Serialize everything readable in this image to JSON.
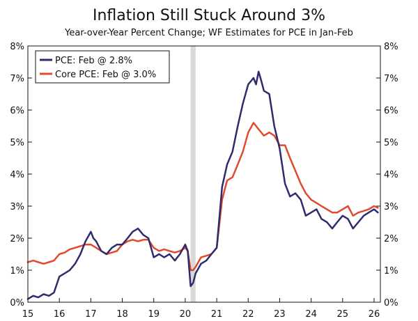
{
  "chart_data": {
    "type": "line",
    "title": "Inflation Still Stuck Around 3%",
    "subtitle": "Year-over-Year Percent Change; WF Estimates for PCE in Jan-Feb",
    "xlabel": "",
    "ylabel": "",
    "xlim": [
      15,
      26.2
    ],
    "ylim": [
      0,
      8
    ],
    "x_ticks": [
      15,
      16,
      17,
      18,
      19,
      20,
      21,
      22,
      23,
      24,
      25,
      26
    ],
    "x_tick_labels": [
      "15",
      "16",
      "17",
      "18",
      "19",
      "20",
      "21",
      "22",
      "23",
      "24",
      "25",
      "26"
    ],
    "y_ticks": [
      0,
      1,
      2,
      3,
      4,
      5,
      6,
      7,
      8
    ],
    "y_tick_labels": [
      "0%",
      "1%",
      "2%",
      "3%",
      "4%",
      "5%",
      "6%",
      "7%",
      "8%"
    ],
    "recession_band": [
      20.17,
      20.33
    ],
    "legend": {
      "placement": "top-left"
    },
    "series": [
      {
        "name": "PCE: Feb @ 2.8%",
        "color": "#2e2b6e",
        "x": [
          15.0,
          15.17,
          15.33,
          15.5,
          15.67,
          15.83,
          16.0,
          16.17,
          16.33,
          16.5,
          16.67,
          16.83,
          17.0,
          17.08,
          17.17,
          17.33,
          17.5,
          17.67,
          17.83,
          18.0,
          18.17,
          18.33,
          18.5,
          18.67,
          18.83,
          19.0,
          19.17,
          19.33,
          19.5,
          19.67,
          19.83,
          20.0,
          20.08,
          20.17,
          20.25,
          20.33,
          20.5,
          20.67,
          20.83,
          21.0,
          21.17,
          21.33,
          21.5,
          21.67,
          21.83,
          22.0,
          22.17,
          22.25,
          22.33,
          22.42,
          22.5,
          22.67,
          22.83,
          23.0,
          23.17,
          23.33,
          23.5,
          23.67,
          23.83,
          24.0,
          24.17,
          24.33,
          24.5,
          24.67,
          24.83,
          25.0,
          25.17,
          25.33,
          25.5,
          25.67,
          25.83,
          26.0,
          26.12
        ],
        "y": [
          0.1,
          0.2,
          0.15,
          0.25,
          0.2,
          0.3,
          0.8,
          0.9,
          1.0,
          1.2,
          1.5,
          1.9,
          2.2,
          2.0,
          1.9,
          1.6,
          1.5,
          1.7,
          1.8,
          1.8,
          2.0,
          2.2,
          2.3,
          2.1,
          2.0,
          1.4,
          1.5,
          1.4,
          1.5,
          1.3,
          1.5,
          1.8,
          1.6,
          0.5,
          0.6,
          0.9,
          1.2,
          1.3,
          1.5,
          1.7,
          3.6,
          4.3,
          4.7,
          5.5,
          6.2,
          6.8,
          7.0,
          6.8,
          7.2,
          6.9,
          6.6,
          6.5,
          5.5,
          4.8,
          3.7,
          3.3,
          3.4,
          3.2,
          2.7,
          2.8,
          2.9,
          2.6,
          2.5,
          2.3,
          2.5,
          2.7,
          2.6,
          2.3,
          2.5,
          2.7,
          2.8,
          2.9,
          2.8
        ]
      },
      {
        "name": "Core PCE: Feb @ 3.0%",
        "color": "#e04b2d",
        "x": [
          15.0,
          15.17,
          15.33,
          15.5,
          15.67,
          15.83,
          16.0,
          16.17,
          16.33,
          16.5,
          16.67,
          16.83,
          17.0,
          17.17,
          17.33,
          17.5,
          17.67,
          17.83,
          18.0,
          18.17,
          18.33,
          18.5,
          18.67,
          18.83,
          19.0,
          19.17,
          19.33,
          19.5,
          19.67,
          19.83,
          20.0,
          20.08,
          20.17,
          20.25,
          20.33,
          20.5,
          20.67,
          20.83,
          21.0,
          21.17,
          21.33,
          21.5,
          21.67,
          21.83,
          22.0,
          22.17,
          22.33,
          22.5,
          22.67,
          22.83,
          23.0,
          23.17,
          23.33,
          23.5,
          23.67,
          23.83,
          24.0,
          24.17,
          24.33,
          24.5,
          24.67,
          24.83,
          25.0,
          25.17,
          25.33,
          25.5,
          25.67,
          25.83,
          26.0,
          26.12
        ],
        "y": [
          1.25,
          1.3,
          1.25,
          1.2,
          1.25,
          1.3,
          1.5,
          1.55,
          1.65,
          1.7,
          1.75,
          1.8,
          1.8,
          1.7,
          1.6,
          1.5,
          1.55,
          1.6,
          1.8,
          1.9,
          1.95,
          1.9,
          1.95,
          1.95,
          1.7,
          1.6,
          1.65,
          1.6,
          1.55,
          1.6,
          1.7,
          1.6,
          1.0,
          1.0,
          1.1,
          1.4,
          1.45,
          1.5,
          1.7,
          3.2,
          3.8,
          3.9,
          4.3,
          4.7,
          5.3,
          5.6,
          5.4,
          5.2,
          5.3,
          5.2,
          4.9,
          4.9,
          4.5,
          4.1,
          3.7,
          3.4,
          3.2,
          3.1,
          3.0,
          2.9,
          2.8,
          2.8,
          2.9,
          3.0,
          2.7,
          2.8,
          2.85,
          2.9,
          3.0,
          2.95
        ]
      }
    ]
  }
}
